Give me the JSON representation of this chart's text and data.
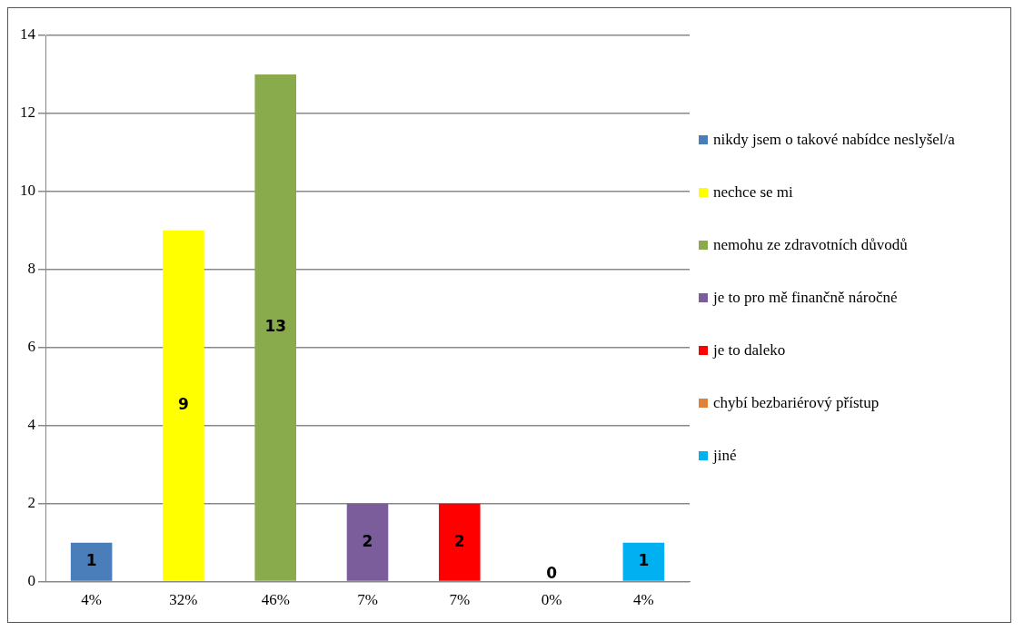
{
  "chart_data": {
    "type": "bar",
    "categories": [
      "4%",
      "32%",
      "46%",
      "7%",
      "7%",
      "0%",
      "4%"
    ],
    "series": [
      {
        "name": "nikdy jsem o takové nabídce neslyšel/a",
        "color": "#4a7ebb",
        "values": [
          1,
          null,
          null,
          null,
          null,
          null,
          null
        ]
      },
      {
        "name": "nechce se mi",
        "color": "#ffff00",
        "values": [
          null,
          9,
          null,
          null,
          null,
          null,
          null
        ]
      },
      {
        "name": "nemohu ze zdravotních důvodů",
        "color": "#8aab4c",
        "values": [
          null,
          null,
          13,
          null,
          null,
          null,
          null
        ]
      },
      {
        "name": "je to pro mě finančně náročné",
        "color": "#7b5d9b",
        "values": [
          null,
          null,
          null,
          2,
          null,
          null,
          null
        ]
      },
      {
        "name": "je to daleko",
        "color": "#ff0000",
        "values": [
          null,
          null,
          null,
          null,
          2,
          null,
          null
        ]
      },
      {
        "name": "chybí bezbariérový přístup",
        "color": "#e0833a",
        "values": [
          null,
          null,
          null,
          null,
          null,
          0,
          null
        ]
      },
      {
        "name": "jiné",
        "color": "#00b0f0",
        "values": [
          null,
          null,
          null,
          null,
          null,
          null,
          1
        ]
      }
    ],
    "ylim": [
      0,
      14
    ],
    "yticks": [
      0,
      2,
      4,
      6,
      8,
      10,
      12,
      14
    ],
    "grid": "y",
    "legend": "right",
    "data_labels": true
  }
}
